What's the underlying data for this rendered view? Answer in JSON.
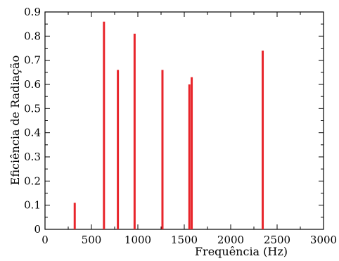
{
  "chart_data": {
    "type": "bar",
    "xlabel": "Frequência (Hz)",
    "ylabel": "Eficiência de Radiação",
    "xlim": [
      0,
      3000
    ],
    "ylim": [
      0,
      0.9
    ],
    "xticks": [
      0,
      500,
      1000,
      1500,
      2000,
      2500,
      3000
    ],
    "xtick_labels": [
      "0",
      "500",
      "1000",
      "1500",
      "2000",
      "2500",
      "3000"
    ],
    "yticks": [
      0,
      0.1,
      0.2,
      0.3,
      0.4,
      0.5,
      0.6,
      0.7,
      0.8,
      0.9
    ],
    "ytick_labels": [
      "0",
      "0.1",
      "0.2",
      "0.3",
      "0.4",
      "0.5",
      "0.6",
      "0.7",
      "0.8",
      "0.9"
    ],
    "grid": false,
    "bar_color": "#e8252b",
    "x": [
      320,
      635,
      785,
      965,
      1265,
      1555,
      1580,
      2345
    ],
    "values": [
      0.11,
      0.86,
      0.66,
      0.81,
      0.66,
      0.6,
      0.63,
      0.74
    ]
  }
}
